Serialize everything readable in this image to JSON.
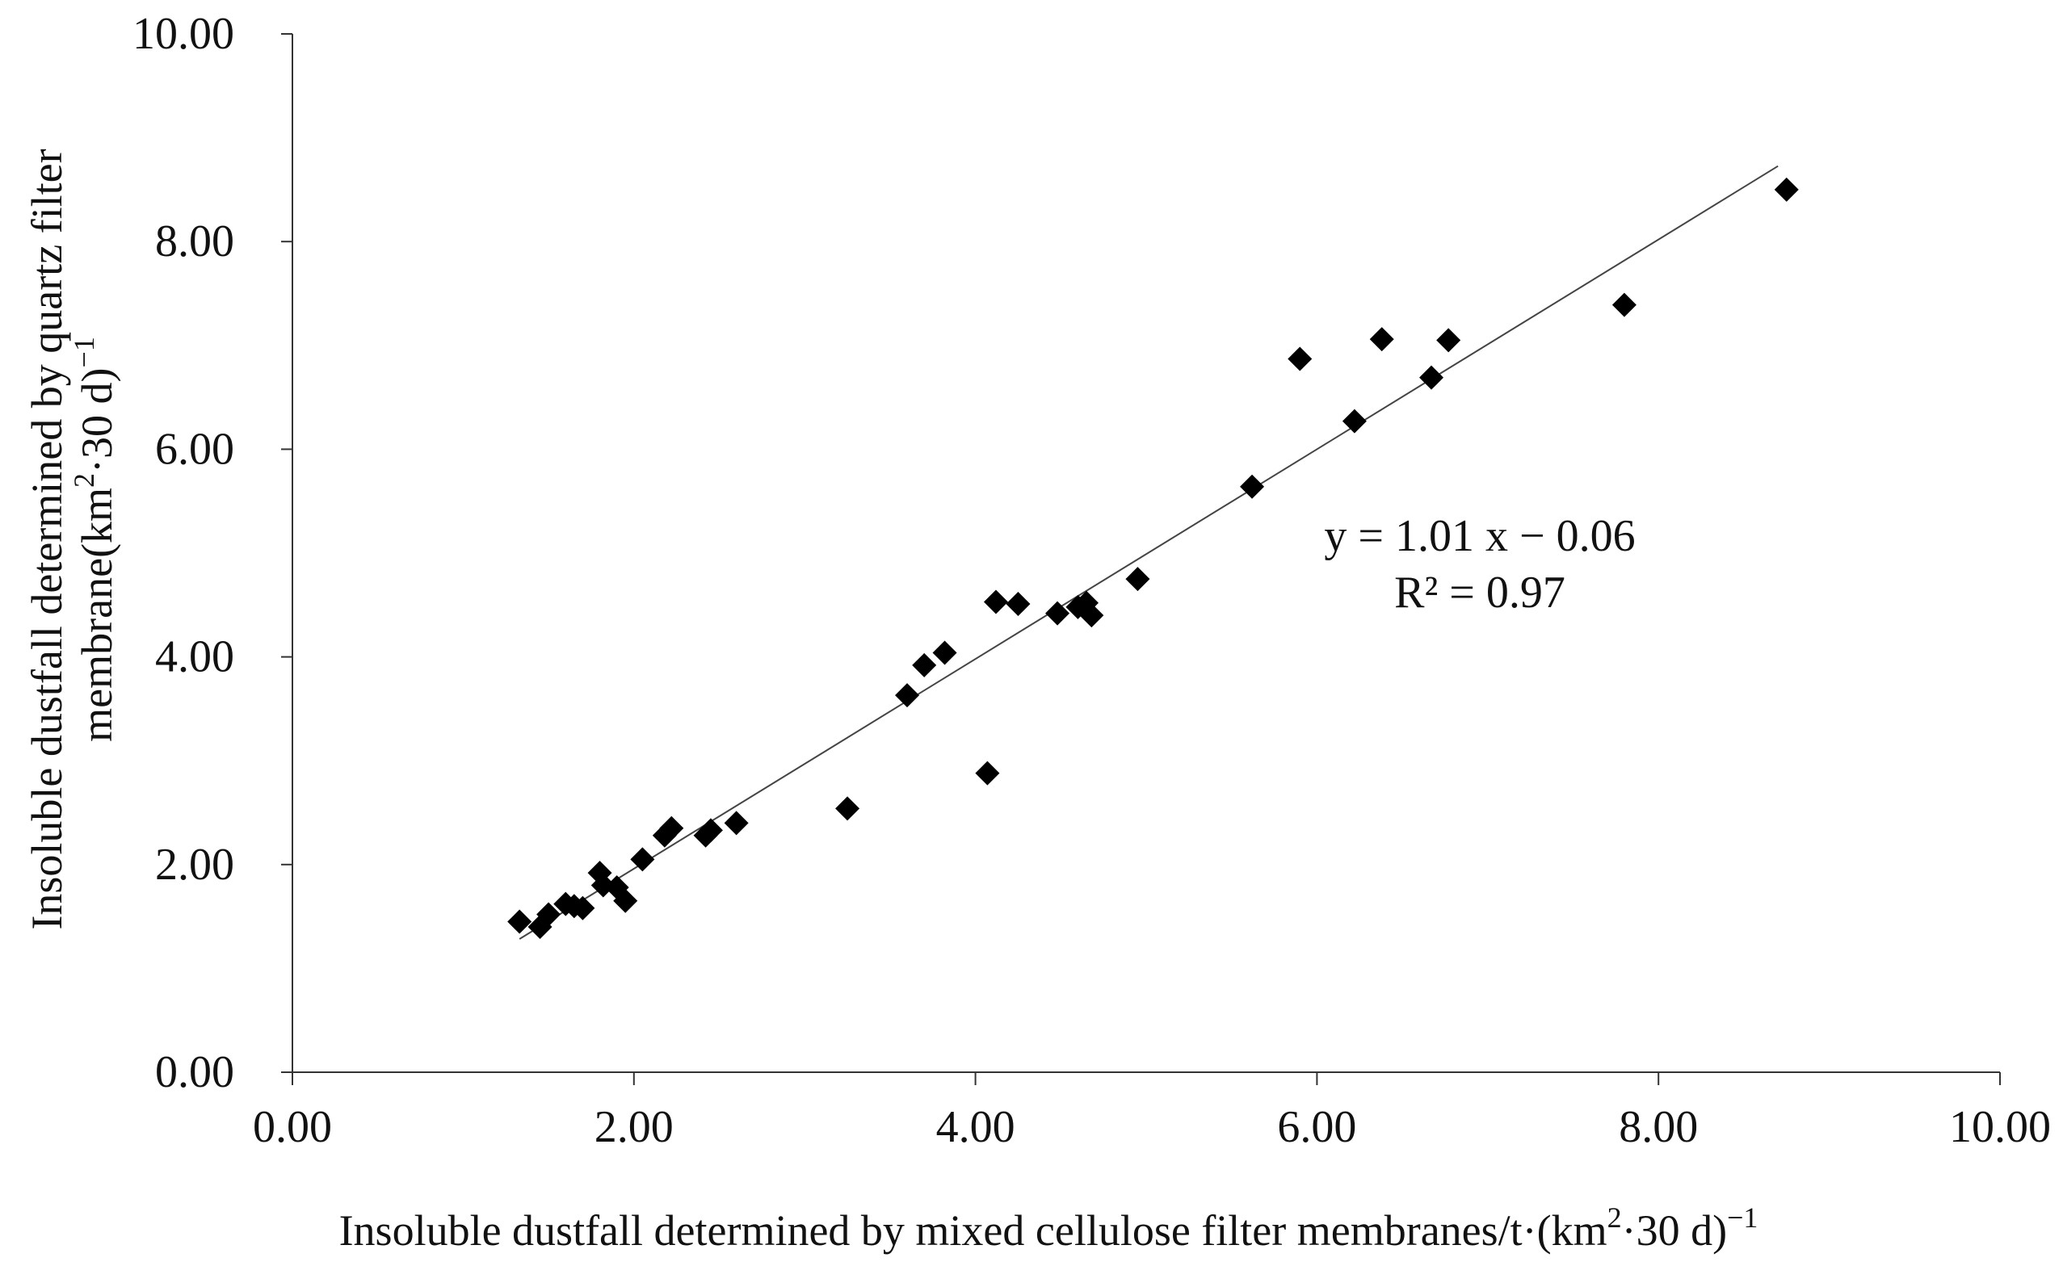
{
  "chart_data": {
    "type": "scatter",
    "title": "",
    "xlabel": {
      "main": "Insoluble dustfall determined by mixed cellulose filter membranes/t·(km",
      "sup1": "2",
      "mid": "·30 d)",
      "sup2": "−1"
    },
    "ylabel": {
      "line1": "Insoluble dustfall determined by quartz filter",
      "line2_main": "membrane(km",
      "line2_sup1": "2",
      "line2_mid": "·30 d)",
      "line2_sup2": "−1"
    },
    "xlim": [
      0,
      10
    ],
    "ylim": [
      0,
      10
    ],
    "xticks": [
      0,
      2,
      4,
      6,
      8,
      10
    ],
    "yticks": [
      0,
      2,
      4,
      6,
      8,
      10
    ],
    "xtick_labels": [
      "0.00",
      "2.00",
      "4.00",
      "6.00",
      "8.00",
      "10.00"
    ],
    "ytick_labels": [
      "0.00",
      "2.00",
      "4.00",
      "6.00",
      "8.00",
      "10.00"
    ],
    "grid": false,
    "marker": "diamond",
    "marker_color": "#000000",
    "line_color": "#444444",
    "points": [
      {
        "x": 1.33,
        "y": 1.45
      },
      {
        "x": 1.45,
        "y": 1.4
      },
      {
        "x": 1.5,
        "y": 1.52
      },
      {
        "x": 1.6,
        "y": 1.62
      },
      {
        "x": 1.65,
        "y": 1.6
      },
      {
        "x": 1.7,
        "y": 1.58
      },
      {
        "x": 1.8,
        "y": 1.92
      },
      {
        "x": 1.82,
        "y": 1.8
      },
      {
        "x": 1.9,
        "y": 1.78
      },
      {
        "x": 1.95,
        "y": 1.65
      },
      {
        "x": 2.05,
        "y": 2.05
      },
      {
        "x": 2.18,
        "y": 2.28
      },
      {
        "x": 2.22,
        "y": 2.35
      },
      {
        "x": 2.42,
        "y": 2.28
      },
      {
        "x": 2.45,
        "y": 2.33
      },
      {
        "x": 2.6,
        "y": 2.4
      },
      {
        "x": 3.25,
        "y": 2.54
      },
      {
        "x": 3.6,
        "y": 3.63
      },
      {
        "x": 3.7,
        "y": 3.92
      },
      {
        "x": 3.82,
        "y": 4.04
      },
      {
        "x": 4.07,
        "y": 2.88
      },
      {
        "x": 4.12,
        "y": 4.53
      },
      {
        "x": 4.25,
        "y": 4.51
      },
      {
        "x": 4.48,
        "y": 4.42
      },
      {
        "x": 4.6,
        "y": 4.48
      },
      {
        "x": 4.65,
        "y": 4.52
      },
      {
        "x": 4.68,
        "y": 4.4
      },
      {
        "x": 4.95,
        "y": 4.75
      },
      {
        "x": 5.62,
        "y": 5.64
      },
      {
        "x": 5.9,
        "y": 6.87
      },
      {
        "x": 6.22,
        "y": 6.27
      },
      {
        "x": 6.38,
        "y": 7.06
      },
      {
        "x": 6.67,
        "y": 6.69
      },
      {
        "x": 6.77,
        "y": 7.05
      },
      {
        "x": 7.8,
        "y": 7.39
      },
      {
        "x": 8.75,
        "y": 8.5
      }
    ],
    "trendline": {
      "slope": 1.01,
      "intercept": -0.06,
      "x_start": 1.33,
      "x_end": 8.7
    },
    "annotation": {
      "equation": "y = 1.01 x − 0.06",
      "r_squared": "R² = 0.97"
    }
  }
}
